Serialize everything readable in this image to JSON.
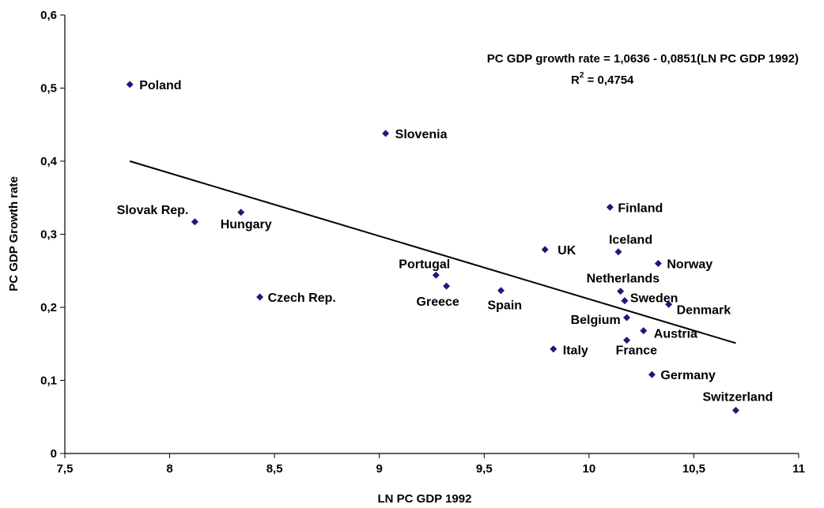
{
  "chart_data": {
    "type": "scatter",
    "title": "",
    "xlabel": "LN PC GDP 1992",
    "ylabel": "PC GDP Growth rate",
    "xlim": [
      7.5,
      11
    ],
    "ylim": [
      0,
      0.6
    ],
    "x_ticks": [
      "7,5",
      "8",
      "8,5",
      "9",
      "9,5",
      "10",
      "10,5",
      "11"
    ],
    "y_ticks": [
      "0",
      "0,1",
      "0,2",
      "0,3",
      "0,4",
      "0,5",
      "0,6"
    ],
    "grid": false,
    "marker_color": "#1a1a7a",
    "points": [
      {
        "name": "Poland",
        "x": 7.81,
        "y": 0.505
      },
      {
        "name": "Slovenia",
        "x": 9.03,
        "y": 0.438
      },
      {
        "name": "Slovak Rep.",
        "x": 8.12,
        "y": 0.317
      },
      {
        "name": "Hungary",
        "x": 8.34,
        "y": 0.33
      },
      {
        "name": "Czech Rep.",
        "x": 8.43,
        "y": 0.214
      },
      {
        "name": "Portugal",
        "x": 9.27,
        "y": 0.244
      },
      {
        "name": "Greece",
        "x": 9.32,
        "y": 0.229
      },
      {
        "name": "Spain",
        "x": 9.58,
        "y": 0.223
      },
      {
        "name": "UK",
        "x": 9.79,
        "y": 0.279
      },
      {
        "name": "Finland",
        "x": 10.1,
        "y": 0.337
      },
      {
        "name": "Iceland",
        "x": 10.14,
        "y": 0.276
      },
      {
        "name": "Norway",
        "x": 10.33,
        "y": 0.26
      },
      {
        "name": "Netherlands",
        "x": 10.15,
        "y": 0.222
      },
      {
        "name": "Sweden",
        "x": 10.17,
        "y": 0.209
      },
      {
        "name": "Denmark",
        "x": 10.38,
        "y": 0.204
      },
      {
        "name": "Belgium",
        "x": 10.18,
        "y": 0.186
      },
      {
        "name": "Austria",
        "x": 10.26,
        "y": 0.168
      },
      {
        "name": "France",
        "x": 10.18,
        "y": 0.155
      },
      {
        "name": "Italy",
        "x": 9.83,
        "y": 0.143
      },
      {
        "name": "Germany",
        "x": 10.3,
        "y": 0.108
      },
      {
        "name": "Switzerland",
        "x": 10.7,
        "y": 0.059
      }
    ],
    "trendline": {
      "x": [
        7.81,
        10.7
      ],
      "y": [
        0.4,
        0.151
      ],
      "equation_text": "PC GDP growth rate =  1,0636 - 0,0851(LN PC GDP 1992)",
      "r2_prefix": "R",
      "r2_exp": "2",
      "r2_value": " = 0,4754"
    }
  }
}
